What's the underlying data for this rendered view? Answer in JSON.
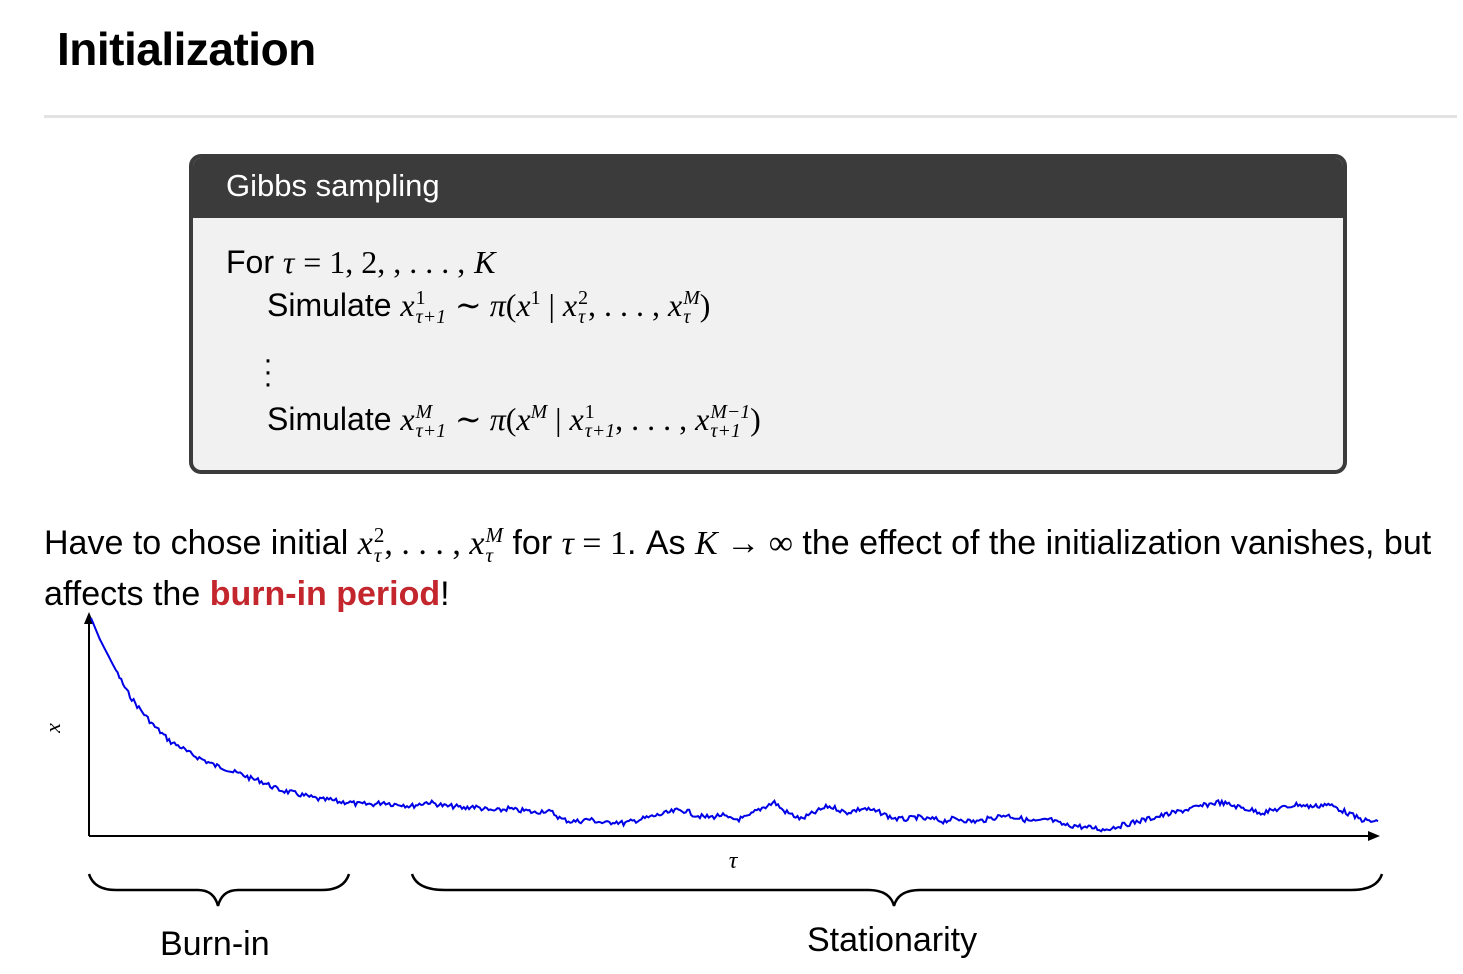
{
  "slide": {
    "title": "Initialization"
  },
  "algorithm": {
    "header": "Gibbs sampling",
    "for_label": "For",
    "simulate_label": "Simulate"
  },
  "body": {
    "text_1": "Have to chose initial",
    "text_2": "for",
    "text_3": ". As",
    "text_4": "the effect of the initialization vanishes, but affects the",
    "emphasis": "burn-in period",
    "text_5": "!"
  },
  "chart_data": {
    "type": "line",
    "xlabel": "τ",
    "ylabel": "x",
    "x_ticks": false,
    "y_ticks": false,
    "color": "#0000e6",
    "series": [
      {
        "values": [
          1.0,
          0.9,
          0.82,
          0.74,
          0.66,
          0.6,
          0.55,
          0.5,
          0.46,
          0.42,
          0.4,
          0.37,
          0.35,
          0.33,
          0.31,
          0.3,
          0.28,
          0.27,
          0.25,
          0.24,
          0.22,
          0.2,
          0.19,
          0.18,
          0.17,
          0.16,
          0.15,
          0.15,
          0.14,
          0.14,
          0.13,
          0.13,
          0.13,
          0.14,
          0.13,
          0.13,
          0.12,
          0.13,
          0.14,
          0.13,
          0.12,
          0.12,
          0.11,
          0.12,
          0.11,
          0.1,
          0.1,
          0.11,
          0.1,
          0.1,
          0.09,
          0.1,
          0.09,
          0.06,
          0.05,
          0.05,
          0.06,
          0.05,
          0.04,
          0.05,
          0.04,
          0.05,
          0.06,
          0.07,
          0.08,
          0.09,
          0.1,
          0.1,
          0.08,
          0.07,
          0.07,
          0.08,
          0.06,
          0.06,
          0.07,
          0.1,
          0.12,
          0.14,
          0.1,
          0.08,
          0.06,
          0.08,
          0.1,
          0.12,
          0.11,
          0.09,
          0.1,
          0.11,
          0.1,
          0.09,
          0.07,
          0.06,
          0.06,
          0.07,
          0.06,
          0.06,
          0.05,
          0.06,
          0.06,
          0.05,
          0.05,
          0.06,
          0.07,
          0.08,
          0.07,
          0.06,
          0.05,
          0.05,
          0.06,
          0.04,
          0.03,
          0.03,
          0.02,
          0.02,
          0.01,
          0.02,
          0.03,
          0.04,
          0.05,
          0.06,
          0.07,
          0.08,
          0.09,
          0.1,
          0.11,
          0.12,
          0.13,
          0.14,
          0.13,
          0.12,
          0.11,
          0.1,
          0.09,
          0.1,
          0.11,
          0.12,
          0.13,
          0.12,
          0.12,
          0.13,
          0.12,
          0.1,
          0.08,
          0.06,
          0.05,
          0.05
        ]
      }
    ]
  },
  "annotations": {
    "burn_in_label": "Burn-in",
    "stationarity_label": "Stationarity"
  }
}
